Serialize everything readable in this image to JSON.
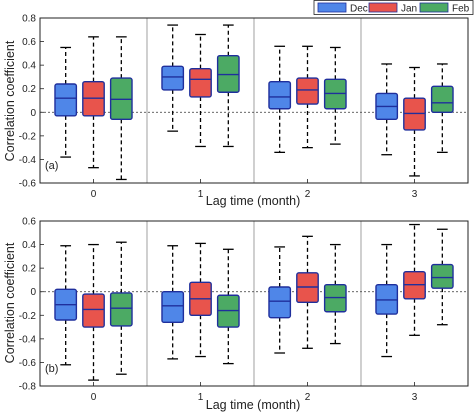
{
  "legend": {
    "placement": "top-right",
    "items": [
      {
        "label": "Dec",
        "color": "#4f86e8"
      },
      {
        "label": "Jan",
        "color": "#e8544c"
      },
      {
        "label": "Feb",
        "color": "#4caa64"
      }
    ]
  },
  "chart_data": [
    {
      "type": "box",
      "panel_label": "(a)",
      "xlabel": "Lag time (month)",
      "ylabel": "Correlation coefficient",
      "categories": [
        "0",
        "1",
        "2",
        "3"
      ],
      "ylim": [
        -0.6,
        0.8
      ],
      "yticks": [
        -0.6,
        -0.4,
        -0.2,
        0,
        0.2,
        0.4,
        0.6,
        0.8
      ],
      "ytick_labels": [
        "-0.6",
        "-0.4",
        "-0.2",
        "0",
        "0.2",
        "0.4",
        "0.6",
        "0.8"
      ],
      "zero_line": true,
      "series": [
        {
          "name": "Dec",
          "color": "#4f86e8",
          "boxes": [
            {
              "min": -0.38,
              "q1": -0.03,
              "median": 0.12,
              "q3": 0.24,
              "max": 0.55
            },
            {
              "min": -0.16,
              "q1": 0.19,
              "median": 0.3,
              "q3": 0.39,
              "max": 0.74
            },
            {
              "min": -0.34,
              "q1": 0.03,
              "median": 0.13,
              "q3": 0.26,
              "max": 0.56
            },
            {
              "min": -0.36,
              "q1": -0.06,
              "median": 0.05,
              "q3": 0.16,
              "max": 0.41
            }
          ]
        },
        {
          "name": "Jan",
          "color": "#e8544c",
          "boxes": [
            {
              "min": -0.47,
              "q1": -0.03,
              "median": 0.12,
              "q3": 0.26,
              "max": 0.64
            },
            {
              "min": -0.29,
              "q1": 0.13,
              "median": 0.28,
              "q3": 0.37,
              "max": 0.66
            },
            {
              "min": -0.3,
              "q1": 0.07,
              "median": 0.19,
              "q3": 0.29,
              "max": 0.56
            },
            {
              "min": -0.54,
              "q1": -0.15,
              "median": -0.01,
              "q3": 0.12,
              "max": 0.38
            }
          ]
        },
        {
          "name": "Feb",
          "color": "#4caa64",
          "boxes": [
            {
              "min": -0.57,
              "q1": -0.06,
              "median": 0.11,
              "q3": 0.29,
              "max": 0.64
            },
            {
              "min": -0.29,
              "q1": 0.17,
              "median": 0.32,
              "q3": 0.48,
              "max": 0.74
            },
            {
              "min": -0.27,
              "q1": 0.03,
              "median": 0.16,
              "q3": 0.28,
              "max": 0.55
            },
            {
              "min": -0.34,
              "q1": 0.0,
              "median": 0.08,
              "q3": 0.22,
              "max": 0.41
            }
          ]
        }
      ]
    },
    {
      "type": "box",
      "panel_label": "(b)",
      "xlabel": "Lag time (month)",
      "ylabel": "Correlation coefficient",
      "categories": [
        "0",
        "1",
        "2",
        "3"
      ],
      "ylim": [
        -0.8,
        0.6
      ],
      "yticks": [
        -0.8,
        -0.6,
        -0.4,
        -0.2,
        0,
        0.2,
        0.4,
        0.6
      ],
      "ytick_labels": [
        "-0.8",
        "-0.6",
        "-0.4",
        "-0.2",
        "0",
        "0.2",
        "0.4",
        "0.6"
      ],
      "zero_line": true,
      "series": [
        {
          "name": "Dec",
          "color": "#4f86e8",
          "boxes": [
            {
              "min": -0.62,
              "q1": -0.24,
              "median": -0.11,
              "q3": 0.02,
              "max": 0.39
            },
            {
              "min": -0.57,
              "q1": -0.26,
              "median": -0.12,
              "q3": 0.0,
              "max": 0.39
            },
            {
              "min": -0.52,
              "q1": -0.22,
              "median": -0.08,
              "q3": 0.04,
              "max": 0.38
            },
            {
              "min": -0.55,
              "q1": -0.19,
              "median": -0.07,
              "q3": 0.06,
              "max": 0.4
            }
          ]
        },
        {
          "name": "Jan",
          "color": "#e8544c",
          "boxes": [
            {
              "min": -0.75,
              "q1": -0.3,
              "median": -0.15,
              "q3": -0.02,
              "max": 0.4
            },
            {
              "min": -0.55,
              "q1": -0.2,
              "median": -0.06,
              "q3": 0.08,
              "max": 0.41
            },
            {
              "min": -0.48,
              "q1": -0.09,
              "median": 0.04,
              "q3": 0.16,
              "max": 0.47
            },
            {
              "min": -0.37,
              "q1": -0.06,
              "median": 0.06,
              "q3": 0.17,
              "max": 0.57
            }
          ]
        },
        {
          "name": "Feb",
          "color": "#4caa64",
          "boxes": [
            {
              "min": -0.7,
              "q1": -0.29,
              "median": -0.14,
              "q3": -0.01,
              "max": 0.42
            },
            {
              "min": -0.61,
              "q1": -0.3,
              "median": -0.16,
              "q3": -0.03,
              "max": 0.36
            },
            {
              "min": -0.44,
              "q1": -0.17,
              "median": -0.05,
              "q3": 0.06,
              "max": 0.4
            },
            {
              "min": -0.28,
              "q1": 0.03,
              "median": 0.12,
              "q3": 0.23,
              "max": 0.53
            }
          ]
        }
      ]
    }
  ]
}
